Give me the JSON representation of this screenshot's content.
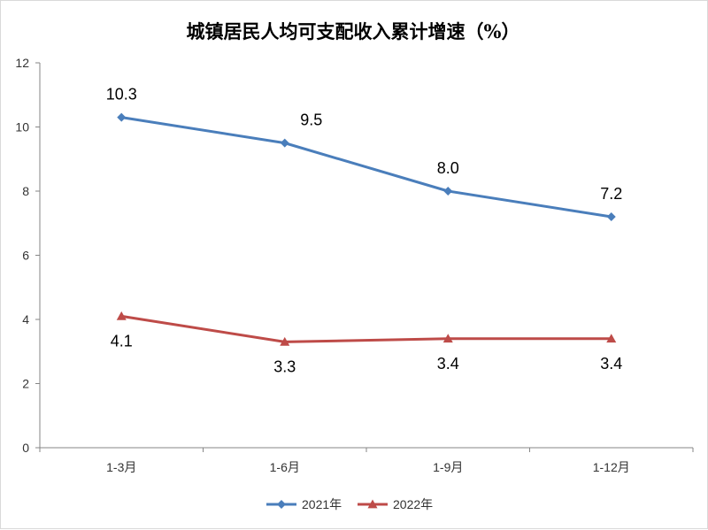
{
  "chart_data": {
    "type": "line",
    "title": "城镇居民人均可支配收入累计增速（%）",
    "categories": [
      "1-3月",
      "1-6月",
      "1-9月",
      "1-12月"
    ],
    "ylim": [
      0,
      12
    ],
    "yticks": [
      0,
      2,
      4,
      6,
      8,
      10,
      12
    ],
    "grid": false,
    "legend_position": "bottom",
    "series": [
      {
        "name": "2021年",
        "values": [
          10.3,
          9.5,
          8.0,
          7.2
        ],
        "labels": [
          "10.3",
          "9.5",
          "8.0",
          "7.2"
        ],
        "color": "#4a7ebb",
        "marker": "diamond"
      },
      {
        "name": "2022年",
        "values": [
          4.1,
          3.3,
          3.4,
          3.4
        ],
        "labels": [
          "4.1",
          "3.3",
          "3.4",
          "3.4"
        ],
        "color": "#be4b48",
        "marker": "triangle"
      }
    ]
  }
}
